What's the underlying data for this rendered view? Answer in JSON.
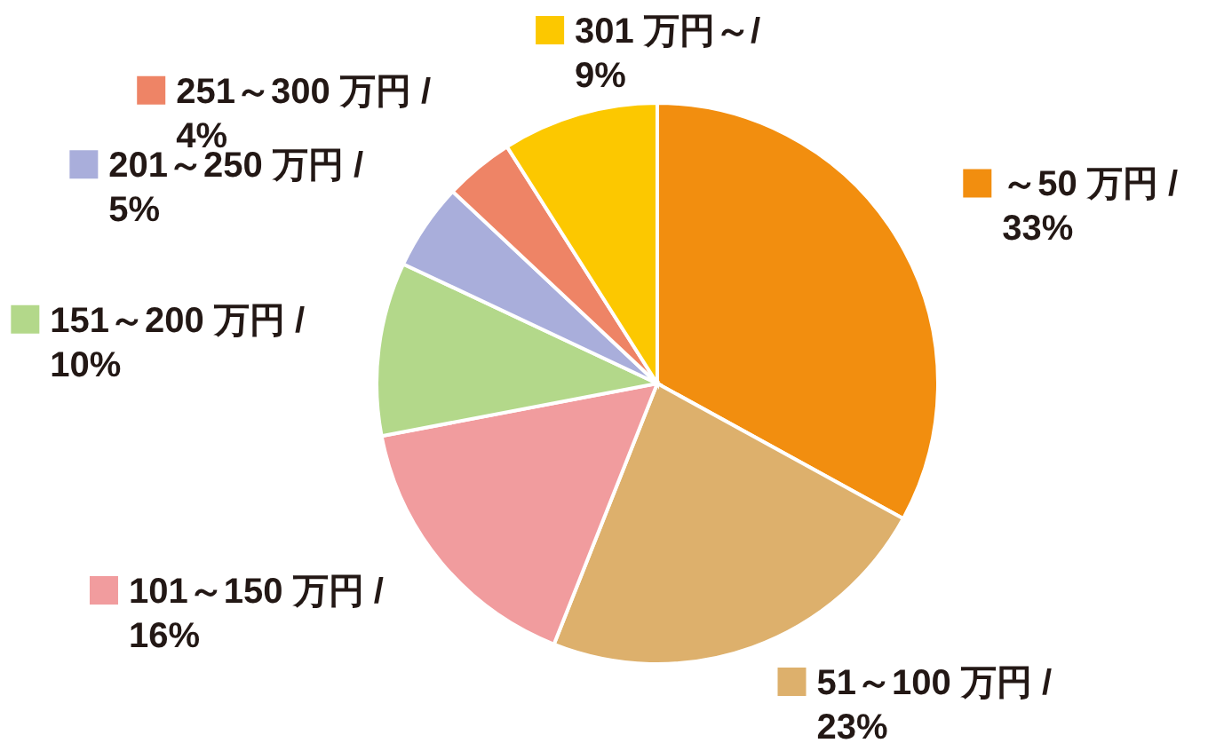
{
  "chart_data": {
    "type": "pie",
    "categories": [
      "～50 万円 /",
      "51～100 万円 /",
      "101～150 万円 /",
      "151～200 万円 /",
      "201～250 万円 /",
      "251～300 万円 /",
      "301 万円～/"
    ],
    "values": [
      33,
      23,
      16,
      10,
      5,
      4,
      9
    ],
    "colors": [
      "#f28e0f",
      "#ddb06c",
      "#f19c9e",
      "#b3d88a",
      "#a9aedb",
      "#ee8466",
      "#fcc800"
    ],
    "value_labels": [
      "33%",
      "23%",
      "16%",
      "10%",
      "5%",
      "4%",
      "9%"
    ],
    "legend": "left"
  }
}
